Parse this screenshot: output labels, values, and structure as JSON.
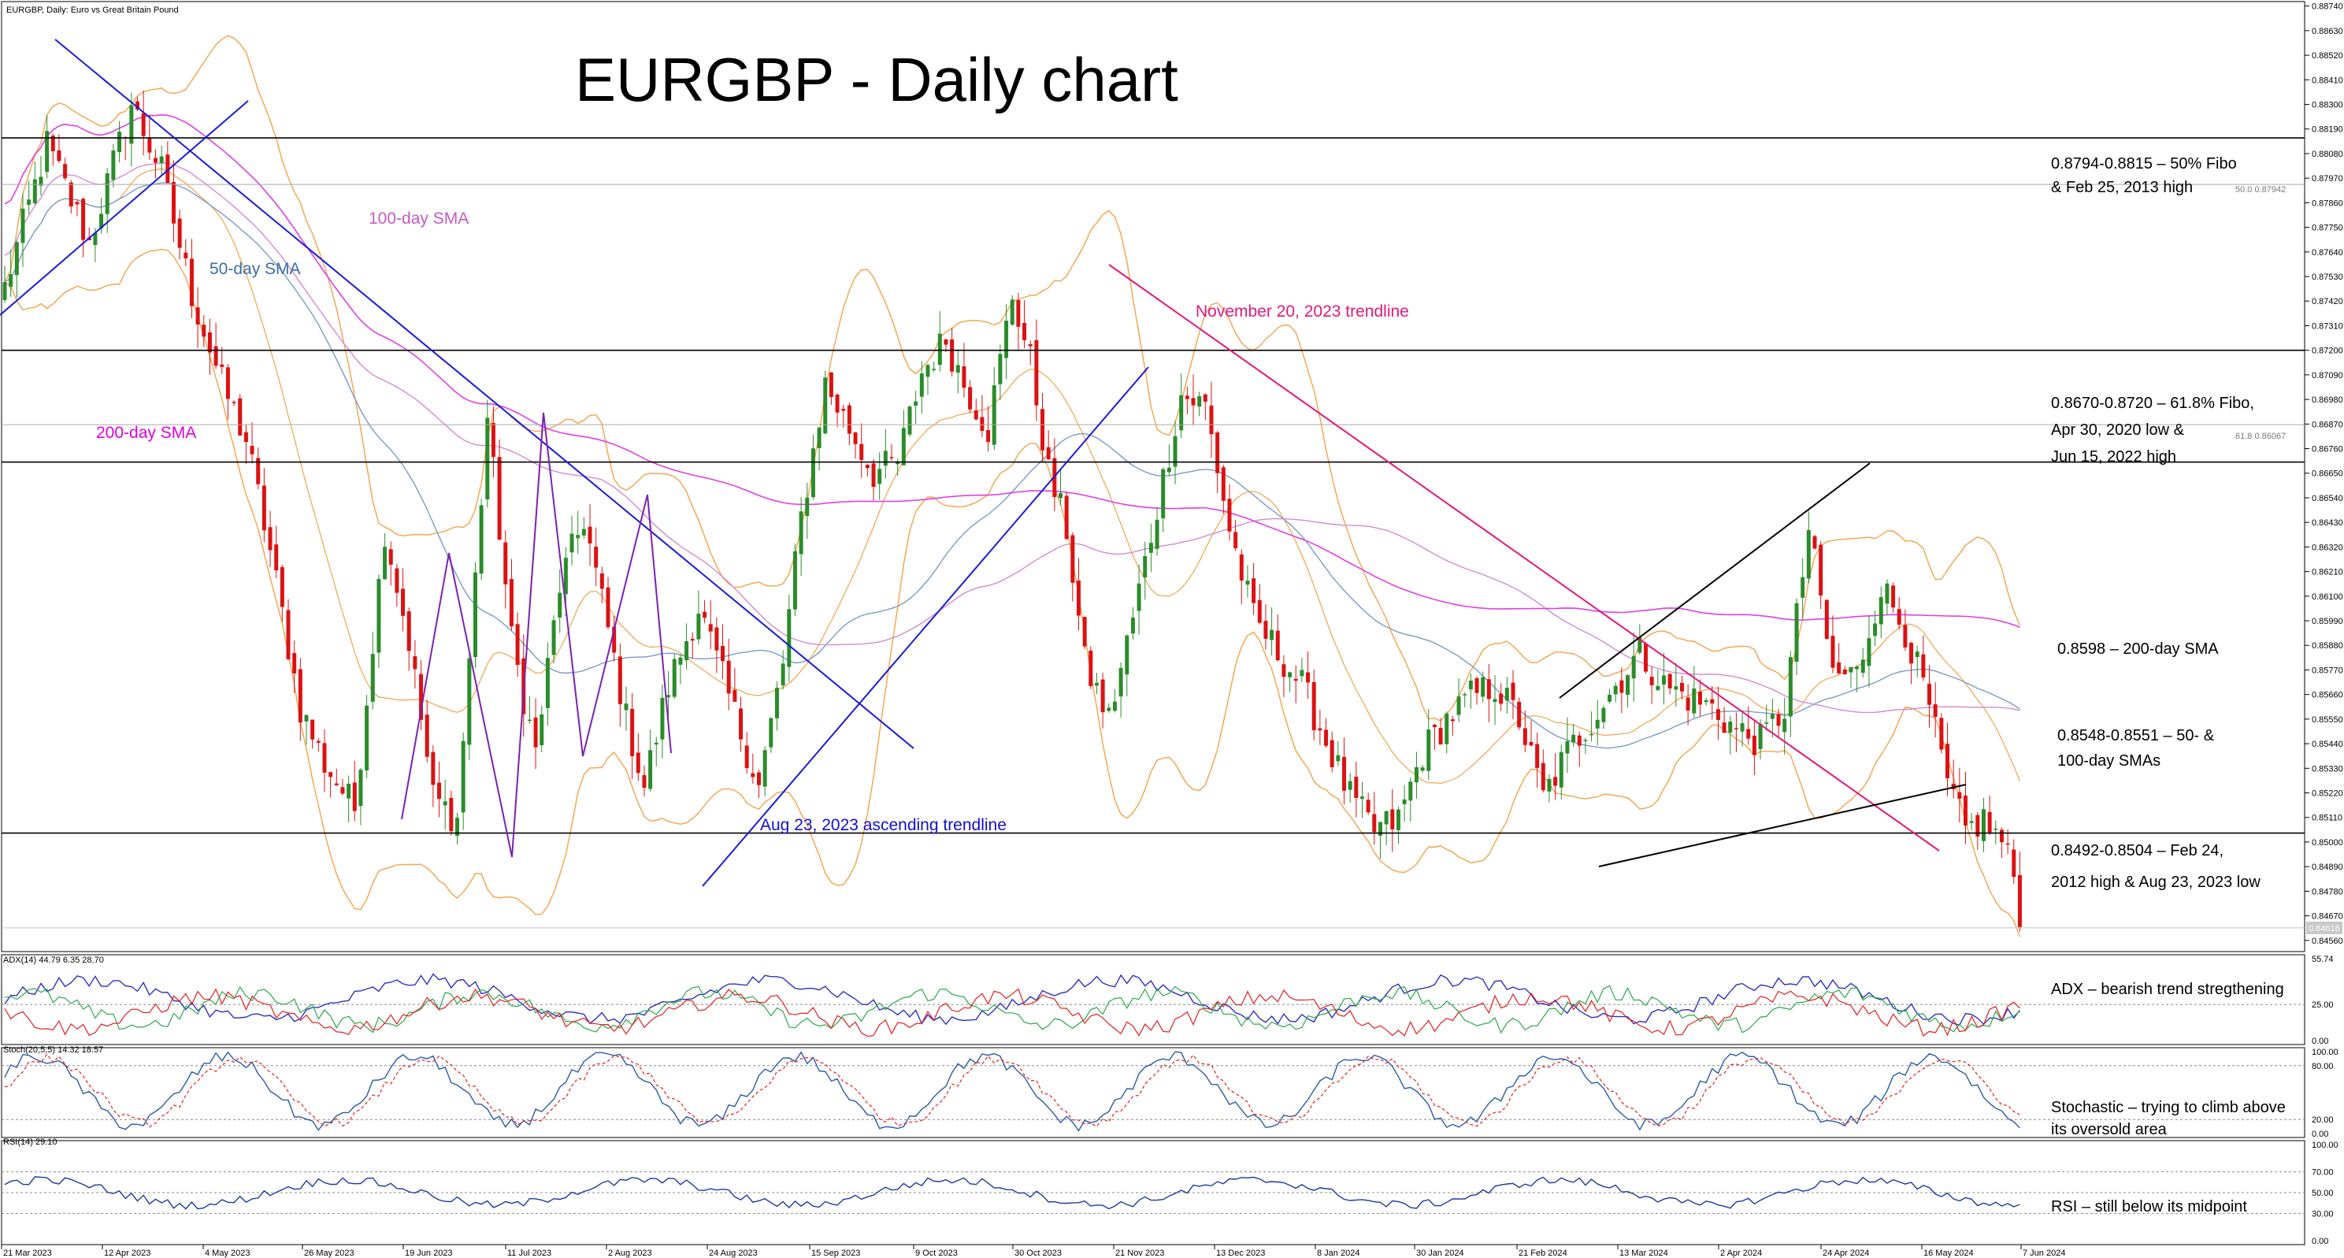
{
  "header": {
    "symbol_text": "EURGBP, Daily:  Euro vs Great Britain Pound",
    "title": "EURGBP - Daily chart"
  },
  "annotations": {
    "sma100": "100-day SMA",
    "sma50": "50-day SMA",
    "sma200": "200-day SMA",
    "nov_trend": "November 20, 2023 trendline",
    "aug_trend": "Aug 23, 2023 ascending trendline",
    "level1": [
      "0.8794-0.8815 – 50% Fibo",
      "& Feb 25, 2013 high"
    ],
    "level2": [
      "0.8670-0.8720 – 61.8% Fibo,",
      "Apr 30, 2020 low &",
      "Jun 15, 2022 high"
    ],
    "level3": [
      "0.8598 – 200-day SMA"
    ],
    "level4": [
      "0.8548-0.8551 – 50- &",
      "100-day SMAs"
    ],
    "level5": [
      "0.8492-0.8504 – Feb 24,",
      "2012 high & Aug 23, 2023 low"
    ],
    "fibo50": "50.0 0.87942",
    "fibo618": "61.8 0.86067",
    "adx_note": "ADX – bearish trend stregthening",
    "stoch_note": [
      "Stochastic – trying to climb above",
      "its oversold area"
    ],
    "rsi_note": "RSI – still below its midpoint"
  },
  "chart_data": {
    "type": "candlestick",
    "title": "EURGBP - Daily chart",
    "price_axis": {
      "ticks": [
        "0.88740",
        "0.88630",
        "0.88520",
        "0.88410",
        "0.88300",
        "0.88190",
        "0.88080",
        "0.87970",
        "0.87860",
        "0.87750",
        "0.87640",
        "0.87530",
        "0.87420",
        "0.87310",
        "0.87200",
        "0.87090",
        "0.86980",
        "0.86870",
        "0.86760",
        "0.86650",
        "0.86540",
        "0.86430",
        "0.86320",
        "0.86210",
        "0.86100",
        "0.85990",
        "0.85880",
        "0.85770",
        "0.85660",
        "0.85550",
        "0.85440",
        "0.85330",
        "0.85220",
        "0.85110",
        "0.85000",
        "0.84890",
        "0.84780",
        "0.84670",
        "0.84560"
      ],
      "range": [
        0.8451,
        0.8876
      ],
      "current_price": "0.84616"
    },
    "date_axis": [
      "21 Mar 2023",
      "12 Apr 2023",
      "4 May 2023",
      "26 May 2023",
      "19 Jun 2023",
      "11 Jul 2023",
      "2 Aug 2023",
      "24 Aug 2023",
      "15 Sep 2023",
      "9 Oct 2023",
      "30 Oct 2023",
      "21 Nov 2023",
      "13 Dec 2023",
      "8 Jan 2024",
      "30 Jan 2024",
      "21 Feb 2024",
      "13 Mar 2024",
      "2 Apr 2024",
      "24 Apr 2024",
      "16 May 2024",
      "7 Jun 2024"
    ],
    "horizontal_levels": [
      0.8815,
      0.87942,
      0.872,
      0.86867,
      0.867,
      0.8504,
      0.84616
    ],
    "close_path": [
      [
        0,
        0.8748
      ],
      [
        7,
        0.8812
      ],
      [
        14,
        0.8768
      ],
      [
        21,
        0.883
      ],
      [
        26,
        0.88
      ],
      [
        31,
        0.8745
      ],
      [
        36,
        0.8705
      ],
      [
        40,
        0.868
      ],
      [
        44,
        0.863
      ],
      [
        49,
        0.856
      ],
      [
        53,
        0.8535
      ],
      [
        58,
        0.8515
      ],
      [
        63,
        0.864
      ],
      [
        67,
        0.859
      ],
      [
        71,
        0.852
      ],
      [
        75,
        0.851
      ],
      [
        80,
        0.869
      ],
      [
        84,
        0.859
      ],
      [
        88,
        0.854
      ],
      [
        92,
        0.8615
      ],
      [
        96,
        0.8645
      ],
      [
        100,
        0.8595
      ],
      [
        103,
        0.8555
      ],
      [
        106,
        0.8525
      ],
      [
        110,
        0.857
      ],
      [
        115,
        0.8605
      ],
      [
        120,
        0.8565
      ],
      [
        125,
        0.8525
      ],
      [
        129,
        0.858
      ],
      [
        132,
        0.8645
      ],
      [
        136,
        0.8705
      ],
      [
        140,
        0.8685
      ],
      [
        144,
        0.8665
      ],
      [
        148,
        0.867
      ],
      [
        152,
        0.871
      ],
      [
        156,
        0.8725
      ],
      [
        159,
        0.8705
      ],
      [
        163,
        0.8685
      ],
      [
        167,
        0.8745
      ],
      [
        170,
        0.8715
      ],
      [
        173,
        0.8665
      ],
      [
        176,
        0.864
      ],
      [
        179,
        0.858
      ],
      [
        183,
        0.8555
      ],
      [
        187,
        0.86
      ],
      [
        191,
        0.865
      ],
      [
        195,
        0.87
      ],
      [
        199,
        0.8695
      ],
      [
        203,
        0.864
      ],
      [
        207,
        0.86
      ],
      [
        211,
        0.8585
      ],
      [
        215,
        0.857
      ],
      [
        219,
        0.8545
      ],
      [
        223,
        0.852
      ],
      [
        227,
        0.8505
      ],
      [
        231,
        0.851
      ],
      [
        235,
        0.854
      ],
      [
        239,
        0.8555
      ],
      [
        243,
        0.8565
      ],
      [
        247,
        0.857
      ],
      [
        251,
        0.8555
      ],
      [
        255,
        0.852
      ],
      [
        259,
        0.854
      ],
      [
        263,
        0.8555
      ],
      [
        267,
        0.857
      ],
      [
        271,
        0.8585
      ],
      [
        275,
        0.857
      ],
      [
        279,
        0.8565
      ],
      [
        283,
        0.856
      ],
      [
        287,
        0.855
      ],
      [
        291,
        0.8545
      ],
      [
        295,
        0.856
      ],
      [
        299,
        0.864
      ],
      [
        303,
        0.8575
      ],
      [
        307,
        0.8575
      ],
      [
        311,
        0.8615
      ],
      [
        315,
        0.8595
      ],
      [
        319,
        0.856
      ],
      [
        322,
        0.8525
      ],
      [
        325,
        0.8505
      ],
      [
        328,
        0.851
      ],
      [
        331,
        0.85
      ],
      [
        333,
        0.8485
      ],
      [
        334,
        0.846
      ]
    ],
    "sma50_label": "50-day SMA",
    "sma100_label": "100-day SMA",
    "sma200_label": "200-day SMA",
    "indicators": [
      {
        "name": "ADX(14) 44.79 6.35 28.70",
        "ticks": [
          "55.74",
          "25.00",
          "0.00"
        ],
        "level": 25
      },
      {
        "name": "Stoch(20,5,5) 14.32 18.57",
        "ticks": [
          "100.00",
          "80.00",
          "20.00",
          "0.00"
        ],
        "levels": [
          80,
          20
        ]
      },
      {
        "name": "RSI(14) 29.10",
        "ticks": [
          "100.00",
          "70.00",
          "50.00",
          "30.00",
          "0.00"
        ],
        "levels": [
          70,
          50,
          30
        ]
      }
    ]
  }
}
